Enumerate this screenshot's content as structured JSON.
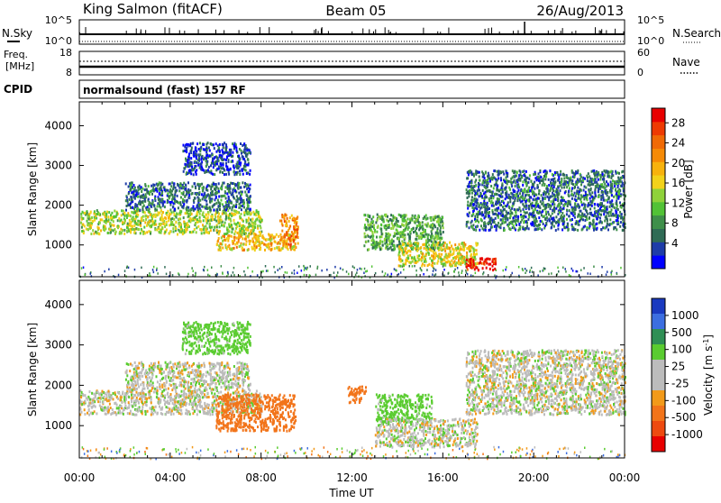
{
  "header": {
    "station": "King Salmon (fitACF)",
    "beam": "Beam 05",
    "date": "26/Aug/2013"
  },
  "strip_panels": {
    "nsky": {
      "label": "N.Sky",
      "right_label": "N.Search",
      "yticks_left": [
        "10^5",
        "10^0"
      ],
      "yticks_right": [
        "10^5",
        "10^0"
      ]
    },
    "freq": {
      "label_line1": "Freq.",
      "label_line2": "[MHz]",
      "yticks_left": [
        "18",
        "8"
      ],
      "right_label": "Nave",
      "yticks_right": [
        "60",
        "0"
      ]
    },
    "cpid": {
      "label": "CPID",
      "value": "normalsound (fast) 157 RF"
    }
  },
  "chart_data": [
    {
      "type": "heatmap",
      "title": "",
      "xlabel": "",
      "ylabel": "Slant Range [km]",
      "xlim": [
        "00:00",
        "00:00"
      ],
      "xticks": [
        "00:00",
        "04:00",
        "08:00",
        "12:00",
        "16:00",
        "20:00",
        "00:00"
      ],
      "ylim": [
        200,
        4600
      ],
      "yticks": [
        1000,
        2000,
        3000,
        4000
      ],
      "colorbar": {
        "label": "Power [dB]",
        "ticks": [
          "4",
          "8",
          "12",
          "16",
          "20",
          "24",
          "28"
        ],
        "colors": [
          "#0000ff",
          "#1e3ca8",
          "#2f6b55",
          "#3f8f4a",
          "#52c236",
          "#8fd23a",
          "#f2d21a",
          "#f7b20d",
          "#f58a06",
          "#f06a05",
          "#ee3a02",
          "#e80000"
        ]
      },
      "regions": [
        {
          "t_start": 0.0,
          "t_end": 8.0,
          "r_start": 1300,
          "r_end": 1900,
          "value": 16
        },
        {
          "t_start": 2.0,
          "t_end": 7.5,
          "r_start": 1900,
          "r_end": 2600,
          "value": 8
        },
        {
          "t_start": 4.5,
          "t_end": 7.5,
          "r_start": 2800,
          "r_end": 3600,
          "value": 6
        },
        {
          "t_start": 6.0,
          "t_end": 9.5,
          "r_start": 900,
          "r_end": 1300,
          "value": 20
        },
        {
          "t_start": 8.8,
          "t_end": 9.6,
          "r_start": 1000,
          "r_end": 1800,
          "value": 24
        },
        {
          "t_start": 12.5,
          "t_end": 16.0,
          "r_start": 900,
          "r_end": 1800,
          "value": 12
        },
        {
          "t_start": 14.0,
          "t_end": 17.5,
          "r_start": 500,
          "r_end": 1100,
          "value": 18
        },
        {
          "t_start": 17.0,
          "t_end": 18.3,
          "r_start": 400,
          "r_end": 700,
          "value": 30
        },
        {
          "t_start": 17.0,
          "t_end": 24.0,
          "r_start": 1400,
          "r_end": 2900,
          "value": 8
        }
      ]
    },
    {
      "type": "heatmap",
      "title": "",
      "xlabel": "Time UT",
      "ylabel": "Slant Range [km]",
      "xlim": [
        "00:00",
        "00:00"
      ],
      "xticks": [
        "00:00",
        "04:00",
        "08:00",
        "12:00",
        "16:00",
        "20:00",
        "00:00"
      ],
      "ylim": [
        200,
        4600
      ],
      "yticks": [
        1000,
        2000,
        3000,
        4000
      ],
      "colorbar": {
        "label": "Velocity [m s^-1]",
        "ticks": [
          "1000",
          "500",
          "100",
          "25",
          "-25",
          "-100",
          "-500",
          "-1000"
        ],
        "colors": [
          "#1a3ac0",
          "#3c6ee0",
          "#2f8f55",
          "#5acc30",
          "#bcbcbc",
          "#bcbcbc",
          "#f29a1a",
          "#f2741a",
          "#ee4a10",
          "#e80000"
        ]
      },
      "regions": [
        {
          "t_start": 0.0,
          "t_end": 8.0,
          "r_start": 1300,
          "r_end": 1900,
          "value": 0
        },
        {
          "t_start": 2.0,
          "t_end": 7.5,
          "r_start": 1900,
          "r_end": 2600,
          "value": 0
        },
        {
          "t_start": 4.5,
          "t_end": 7.5,
          "r_start": 2800,
          "r_end": 3600,
          "value": 60
        },
        {
          "t_start": 6.0,
          "t_end": 9.5,
          "r_start": 900,
          "r_end": 1800,
          "value": -200
        },
        {
          "t_start": 11.8,
          "t_end": 12.6,
          "r_start": 1600,
          "r_end": 2000,
          "value": -200
        },
        {
          "t_start": 13.0,
          "t_end": 15.5,
          "r_start": 1100,
          "r_end": 1800,
          "value": 60
        },
        {
          "t_start": 13.0,
          "t_end": 17.5,
          "r_start": 500,
          "r_end": 1200,
          "value": 0
        },
        {
          "t_start": 17.0,
          "t_end": 24.0,
          "r_start": 1300,
          "r_end": 2900,
          "value": 0
        }
      ]
    }
  ]
}
